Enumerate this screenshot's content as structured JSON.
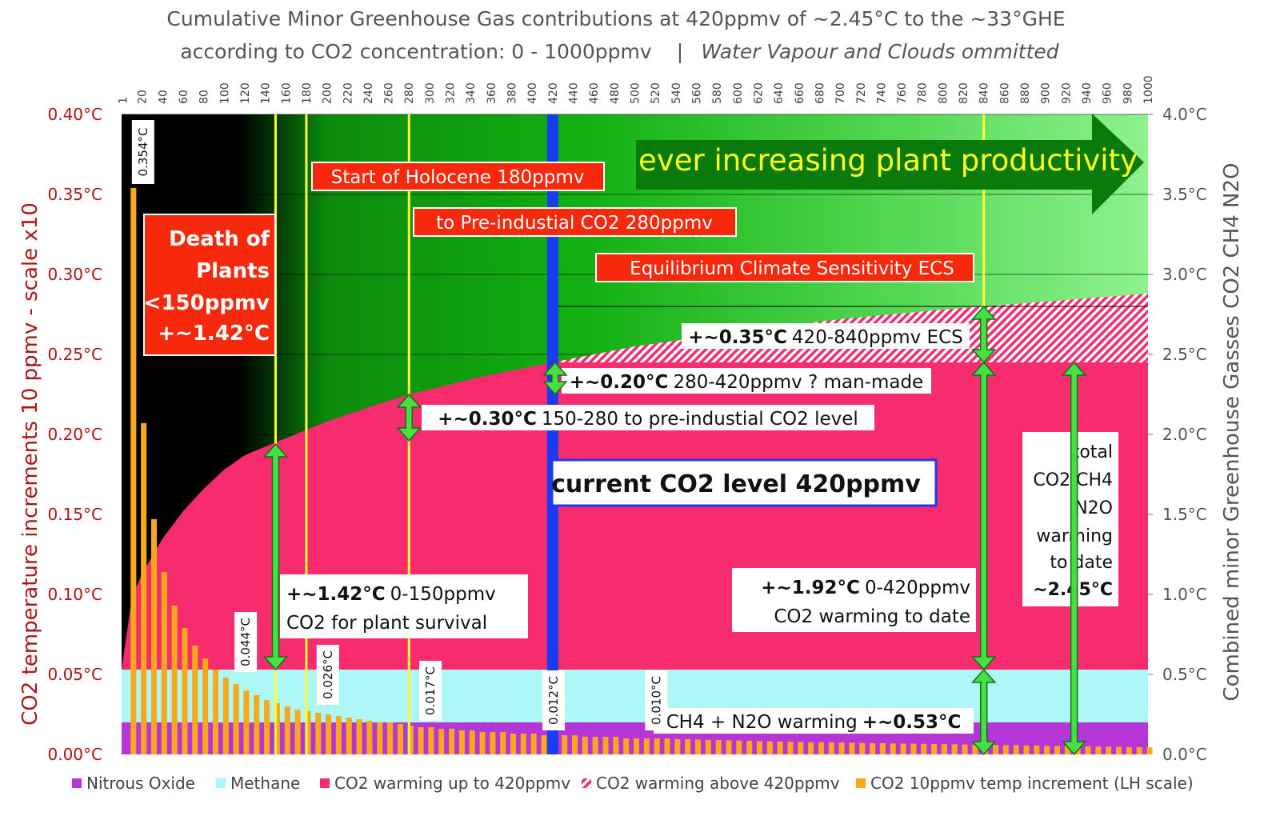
{
  "chart_data": {
    "type": "bar",
    "title_line1": "Cumulative Minor Greenhouse Gas contributions at 420ppmv of ~2.45°C to the ~33°GHE",
    "title_line2a": "according to CO2 concentration:  0 - 1000ppmv",
    "title_line2b": "Water Vapour and Clouds ommitted",
    "ylabel_left": "CO2 temperature increments  10 ppmv - scale x10",
    "ylabel_right": "Combined minor Greenhouse Gasses CO2  CH4 N2O",
    "xlim": [
      0,
      1000
    ],
    "ylim_left": [
      0,
      0.4
    ],
    "ylim_right": [
      0,
      4.0
    ],
    "x_ticks": [
      1,
      20,
      40,
      60,
      80,
      100,
      120,
      140,
      160,
      180,
      200,
      220,
      240,
      260,
      280,
      300,
      320,
      340,
      360,
      380,
      400,
      420,
      440,
      460,
      480,
      500,
      520,
      540,
      560,
      580,
      600,
      620,
      640,
      660,
      680,
      700,
      720,
      740,
      760,
      780,
      800,
      820,
      840,
      860,
      880,
      900,
      920,
      940,
      960,
      980,
      1000
    ],
    "left_ticks": [
      {
        "v": 0.0,
        "label": "0.00°C"
      },
      {
        "v": 0.05,
        "label": "0.05°C"
      },
      {
        "v": 0.1,
        "label": "0.10°C"
      },
      {
        "v": 0.15,
        "label": "0.15°C"
      },
      {
        "v": 0.2,
        "label": "0.20°C"
      },
      {
        "v": 0.25,
        "label": "0.25°C"
      },
      {
        "v": 0.3,
        "label": "0.30°C"
      },
      {
        "v": 0.35,
        "label": "0.35°C"
      },
      {
        "v": 0.4,
        "label": "0.40°C"
      }
    ],
    "right_ticks": [
      {
        "v": 0.0,
        "label": "0.0°C"
      },
      {
        "v": 0.5,
        "label": "0.5°C"
      },
      {
        "v": 1.0,
        "label": "1.0°C"
      },
      {
        "v": 1.5,
        "label": "1.5°C"
      },
      {
        "v": 2.0,
        "label": "2.0°C"
      },
      {
        "v": 2.5,
        "label": "2.5°C"
      },
      {
        "v": 3.0,
        "label": "3.0°C"
      },
      {
        "v": 3.5,
        "label": "3.5°C"
      },
      {
        "v": 4.0,
        "label": "4.0°C"
      }
    ],
    "stacked_areas_right_scale": {
      "nitrous_oxide": 0.2,
      "methane_top": 0.53,
      "co2_curve_x": [
        0,
        10,
        20,
        40,
        60,
        80,
        100,
        120,
        150,
        200,
        250,
        280,
        300,
        350,
        420,
        500,
        600,
        700,
        800,
        840,
        900,
        1000
      ],
      "co2_curve_total": [
        0.53,
        0.98,
        1.13,
        1.35,
        1.52,
        1.66,
        1.78,
        1.87,
        1.95,
        2.08,
        2.19,
        2.25,
        2.28,
        2.36,
        2.45,
        2.55,
        2.64,
        2.72,
        2.78,
        2.8,
        2.83,
        2.88
      ],
      "co2_to_420_top": 2.45,
      "ecs_top_at_840": 2.8
    },
    "bars_10ppmv_left_scale": {
      "x": [
        10,
        20,
        30,
        40,
        50,
        60,
        70,
        80,
        90,
        100,
        110,
        120,
        130,
        140,
        150,
        160,
        170,
        180,
        190,
        200,
        210,
        220,
        230,
        240,
        250,
        260,
        270,
        280,
        290,
        300,
        310,
        320,
        330,
        340,
        350,
        360,
        370,
        380,
        390,
        400,
        410,
        420,
        430,
        440,
        450,
        460,
        470,
        480,
        490,
        500,
        510,
        520,
        530,
        540,
        550,
        560,
        570,
        580,
        590,
        600,
        610,
        620,
        630,
        640,
        650,
        660,
        670,
        680,
        690,
        700,
        710,
        720,
        730,
        740,
        750,
        760,
        770,
        780,
        790,
        800,
        810,
        820,
        830,
        840,
        850,
        860,
        870,
        880,
        890,
        900,
        910,
        920,
        930,
        940,
        950,
        960,
        970,
        980,
        990,
        1000
      ],
      "values": [
        0.354,
        0.207,
        0.147,
        0.114,
        0.093,
        0.079,
        0.068,
        0.06,
        0.053,
        0.048,
        0.044,
        0.04,
        0.037,
        0.034,
        0.032,
        0.03,
        0.028,
        0.027,
        0.026,
        0.025,
        0.024,
        0.023,
        0.022,
        0.021,
        0.02,
        0.02,
        0.019,
        0.018,
        0.017,
        0.017,
        0.016,
        0.016,
        0.015,
        0.015,
        0.014,
        0.014,
        0.014,
        0.013,
        0.013,
        0.013,
        0.012,
        0.012,
        0.012,
        0.012,
        0.011,
        0.011,
        0.011,
        0.011,
        0.01,
        0.01,
        0.01,
        0.01,
        0.01,
        0.0095,
        0.0095,
        0.0093,
        0.0091,
        0.009,
        0.0088,
        0.0086,
        0.0085,
        0.0083,
        0.0082,
        0.008,
        0.0079,
        0.0078,
        0.0077,
        0.0076,
        0.0075,
        0.0074,
        0.0073,
        0.0072,
        0.0071,
        0.007,
        0.0069,
        0.0068,
        0.0067,
        0.0066,
        0.0065,
        0.0064,
        0.0063,
        0.0062,
        0.0061,
        0.006,
        0.0059,
        0.0058,
        0.0057,
        0.0056,
        0.0055,
        0.0054,
        0.0053,
        0.0052,
        0.0051,
        0.005,
        0.0049,
        0.0048,
        0.0047,
        0.0046,
        0.0045,
        0.0044
      ]
    },
    "bar_labels": [
      {
        "x": 10,
        "label": "0.354°C"
      },
      {
        "x": 110,
        "label": "0.044°C"
      },
      {
        "x": 190,
        "label": "0.026°C"
      },
      {
        "x": 290,
        "label": "0.017°C"
      },
      {
        "x": 410,
        "label": "0.012°C"
      },
      {
        "x": 510,
        "label": "0.010°C"
      }
    ],
    "vertical_lines": [
      {
        "x": 150,
        "color": "#ffff33"
      },
      {
        "x": 180,
        "color": "#ffff33"
      },
      {
        "x": 280,
        "color": "#ffff33"
      },
      {
        "x": 840,
        "color": "#ffff33"
      }
    ],
    "current_line": {
      "x": 420,
      "color": "#1a3cf0"
    },
    "legend": [
      {
        "label": "Nitrous Oxide",
        "color": "#b535d6",
        "hatch": false
      },
      {
        "label": "Methane",
        "color": "#aef7f7",
        "hatch": false
      },
      {
        "label": "CO2 warming up to 420ppmv",
        "color": "#f72c6f",
        "hatch": false
      },
      {
        "label": "CO2 warming above 420ppmv",
        "color": "#f72c6f",
        "hatch": true
      },
      {
        "label": "CO2 10ppmv temp increment (LH scale)",
        "color": "#f7a81b",
        "hatch": false
      }
    ],
    "annotations": {
      "death1": "Death of",
      "death2": "Plants",
      "death3": "<150ppmv",
      "death4": "+~1.42°C",
      "holocene": "Start of Holocene 180ppmv",
      "preind": "to Pre-industial CO2  280ppmv",
      "ecs": "Equilibrium Climate Sensitivity  ECS",
      "arrow_text": "ever increasing plant productivity",
      "a035b": "+~0.35°C",
      "a035": "420-840ppmv ECS",
      "a020b": "+~0.20°C",
      "a020": "280-420ppmv ? man-made",
      "a030b": "+~0.30°C",
      "a030": "150-280 to pre-industial CO2 level",
      "current": "current CO2 level 420ppmv",
      "a142b": "+~1.42°C",
      "a142": "0-150ppmv",
      "a142c": "CO2 for plant survival",
      "a192b": "+~1.92°C",
      "a192": "0-420ppmv",
      "a192c": "CO2 warming to date",
      "t1": "total",
      "t2": "CO2 CH4",
      "t3": "N2O",
      "t4": "warming",
      "t5": "to date",
      "t6": "~2.45°C",
      "ch4": "CH4 + N2O warming",
      "ch4b": "+~0.53°C"
    }
  }
}
